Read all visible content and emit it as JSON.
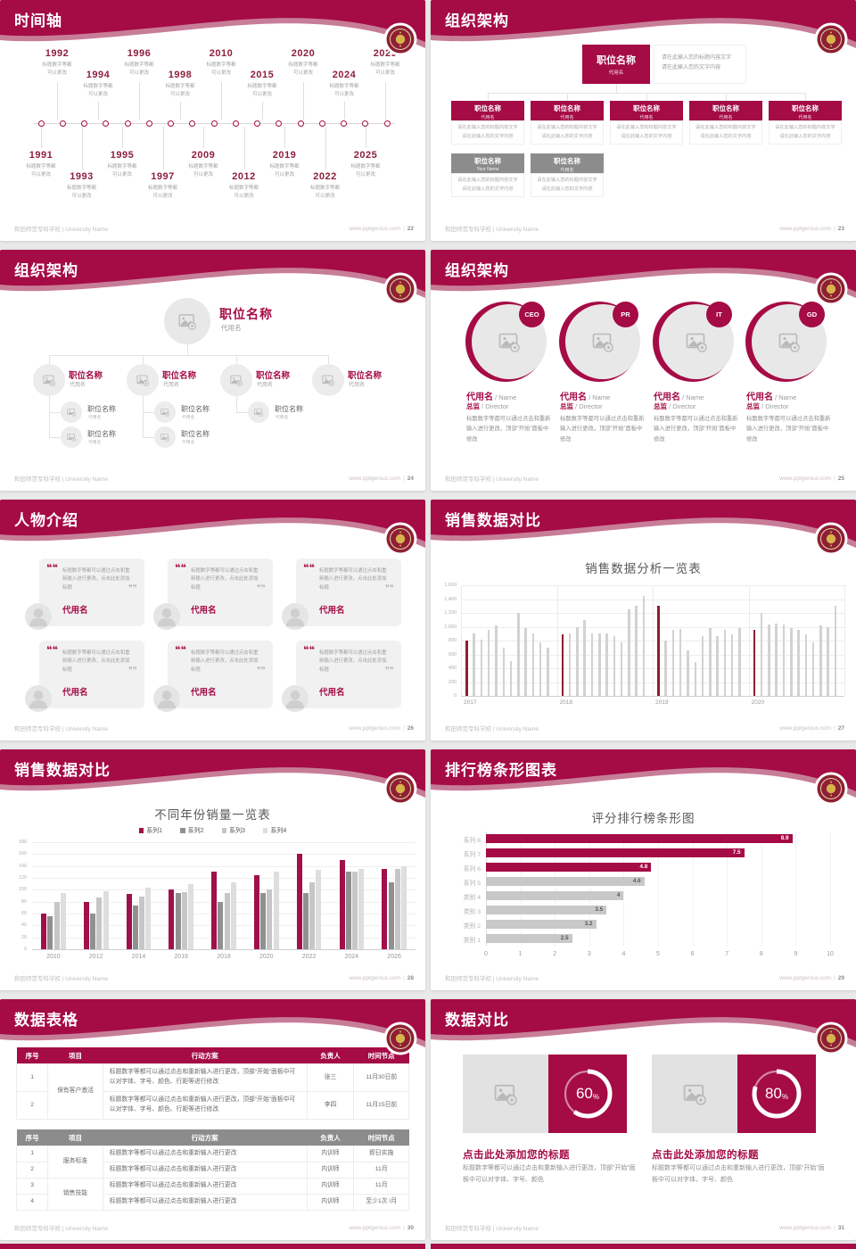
{
  "theme": {
    "primary": "#a50b45",
    "primary_dark": "#8e1f35",
    "pink_stripe": "#c77d97",
    "gray_header": "#8c8c8c",
    "bar_gray": "#d2d2d2",
    "monthly_highlight": "#8e1f2e",
    "series_colors": [
      "#a0104a",
      "#909090",
      "#c6c6c6",
      "#dedede"
    ],
    "rank_gray": "#c8c8c8",
    "gold": "#d8b34c"
  },
  "footer": {
    "left": "和田师范专科学校 | University Name",
    "site": "www.pptgenius.com"
  },
  "placeholders": {
    "position": "职位名称",
    "alias": "代用名",
    "note_line1": "请在此输入您的标题内容文字",
    "note_line2": "请在此输入您的文字内容",
    "edit_note_short": "标题数字等都可以通过点击和重新输入进行更改，顶部“开始”面板中修改",
    "quote_text": "标题数字等都可以通过点击和重新输入进行更改，点击此处添加标题"
  },
  "slides": {
    "timeline": {
      "title": "时间轴",
      "page": "22",
      "desc": [
        "标题数字等都",
        "可以更改"
      ],
      "top_years": [
        "1992",
        "1994",
        "1996",
        "1998",
        "2010",
        "2015",
        "2020",
        "2024",
        "2029"
      ],
      "bottom_years": [
        "1991",
        "1993",
        "1995",
        "1997",
        "2009",
        "2012",
        "2019",
        "2022",
        "2025"
      ]
    },
    "org_boxes": {
      "title": "组织架构",
      "page": "23",
      "root": {
        "title": "职位名称",
        "sub": "代用名"
      },
      "row1": [
        {
          "title": "职位名称",
          "sub": "代用名"
        },
        {
          "title": "职位名称",
          "sub": "代用名"
        },
        {
          "title": "职位名称",
          "sub": "代用名"
        },
        {
          "title": "职位名称",
          "sub": "代用名"
        },
        {
          "title": "职位名称",
          "sub": "代用名"
        }
      ],
      "row2": [
        {
          "title": "职位名称",
          "sub": "Your Name"
        },
        {
          "title": "职位名称",
          "sub": "代用名"
        }
      ]
    },
    "org_tree": {
      "title": "组织架构",
      "page": "24",
      "root": {
        "title": "职位名称",
        "sub": "代用名"
      },
      "branches": [
        {
          "title": "职位名称",
          "sub": "代用名",
          "children": 2
        },
        {
          "title": "职位名称",
          "sub": "代用名",
          "children": 2
        },
        {
          "title": "职位名称",
          "sub": "代用名",
          "children": 1
        },
        {
          "title": "职位名称",
          "sub": "代用名",
          "children": 0
        }
      ],
      "child": {
        "title": "职位名称",
        "sub": "代用名"
      }
    },
    "org_members": {
      "title": "组织架构",
      "page": "25",
      "badges": [
        "CEO",
        "PR",
        "IT",
        "GD"
      ],
      "name": "代用名",
      "name_en": "Name",
      "role": "总监",
      "role_en": "Director"
    },
    "people": {
      "title": "人物介绍",
      "page": "26",
      "card_count": 6,
      "name": "代用名"
    },
    "chart_monthly": {
      "title": "销售数据对比",
      "page": "27"
    },
    "chart_yearly": {
      "title": "销售数据对比",
      "page": "28"
    },
    "chart_ranking": {
      "title": "排行榜条形图表",
      "page": "29"
    },
    "tables": {
      "title": "数据表格",
      "page": "30",
      "columns": [
        "序号",
        "项目",
        "行动方案",
        "负责人",
        "时间节点"
      ],
      "table1": {
        "long_plan": "标题数字等都可以通过点击和重新输入进行更改，顶部“开始”面板中可以对字体、字号、颜色、行距等进行修改",
        "rows": [
          {
            "no": "1",
            "project": "保有客户激活",
            "span": 2,
            "owner": "张三",
            "deadline": "11月30日前"
          },
          {
            "no": "2",
            "project": null,
            "owner": "李四",
            "deadline": "11月15日前"
          }
        ]
      },
      "table2": {
        "short_plan": "标题数字等都可以通过点击和重新输入进行更改",
        "rows": [
          {
            "no": "1",
            "project": "服务标准",
            "span": 2,
            "owner": "内训师",
            "deadline": "即日实施"
          },
          {
            "no": "2",
            "project": null,
            "owner": "内训师",
            "deadline": "11月"
          },
          {
            "no": "3",
            "project": "销售技能",
            "span": 2,
            "owner": "内训师",
            "deadline": "11月"
          },
          {
            "no": "4",
            "project": null,
            "owner": "内训师",
            "deadline": "至少1次 /月"
          }
        ]
      }
    },
    "compare": {
      "title": "数据对比",
      "page": "31",
      "items": [
        {
          "percent": 60,
          "unit": "%"
        },
        {
          "percent": 80,
          "unit": "%"
        }
      ],
      "heading": "点击此处添加您的标题",
      "desc": "标题数字等都可以通过点击和重新输入进行更改，顶部“开始”面板中可以对字体、字号、颜色"
    }
  },
  "chart_data": [
    {
      "type": "bar",
      "title": "销售数据分析一览表",
      "ylim": [
        0,
        1600
      ],
      "ytick_step": 200,
      "legend_position": "none",
      "grid": true,
      "highlight_first_of_group": true,
      "groups": [
        {
          "label": "2017",
          "values": [
            800,
            900,
            810,
            950,
            1020,
            700,
            500,
            1200,
            980,
            900,
            780,
            700
          ]
        },
        {
          "label": "2018",
          "values": [
            890,
            900,
            1000,
            1100,
            900,
            900,
            900,
            870,
            780,
            1250,
            1300,
            1450
          ]
        },
        {
          "label": "2019",
          "values": [
            1300,
            800,
            960,
            970,
            660,
            490,
            860,
            980,
            860,
            960,
            890,
            980
          ]
        },
        {
          "label": "2020",
          "values": [
            950,
            1200,
            1030,
            1040,
            1030,
            980,
            960,
            890,
            770,
            1020,
            1000,
            1300
          ]
        }
      ]
    },
    {
      "type": "bar",
      "title": "不同年份销量一览表",
      "ylim": [
        0,
        180
      ],
      "ytick_step": 20,
      "legend_position": "top",
      "grid": true,
      "categories": [
        "2010",
        "2012",
        "2014",
        "2016",
        "2018",
        "2020",
        "2022",
        "2024",
        "2026"
      ],
      "series": [
        {
          "name": "系列1",
          "values": [
            60,
            80,
            93,
            100,
            130,
            125,
            160,
            150,
            135
          ]
        },
        {
          "name": "系列2",
          "values": [
            55,
            60,
            74,
            95,
            80,
            95,
            95,
            130,
            112
          ]
        },
        {
          "name": "系列3",
          "values": [
            80,
            87,
            88,
            96,
            94,
            100,
            112,
            130,
            135
          ]
        },
        {
          "name": "系列4",
          "values": [
            95,
            98,
            103,
            110,
            113,
            130,
            133,
            135,
            139
          ]
        }
      ]
    },
    {
      "type": "bar",
      "orientation": "horizontal",
      "title": "评分排行榜条形图",
      "xlim": [
        0,
        10
      ],
      "xtick_step": 1,
      "grid": true,
      "categories": [
        "系列 8",
        "系列 7",
        "系列 6",
        "系列 5",
        "类别 4",
        "类别 3",
        "类别 2",
        "类别 1"
      ],
      "values": [
        8.9,
        7.5,
        4.8,
        4.6,
        4,
        3.5,
        3.2,
        2.5
      ],
      "value_labels": [
        "8.9",
        "7.5",
        "4.8",
        "4.6",
        "4",
        "3.5",
        "3.2",
        "2.5"
      ],
      "maroon_bar_count": 3
    }
  ]
}
